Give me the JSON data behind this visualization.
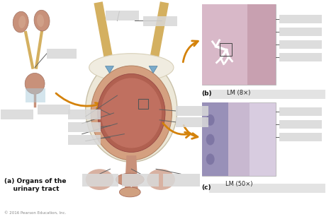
{
  "bg_color": "#ffffff",
  "fig_width": 4.74,
  "fig_height": 3.1,
  "copyright": "© 2016 Pearson Education, Inc.",
  "label_a": "(a) Organs of the\n    urinary tract",
  "label_b": "(b)",
  "label_c": "(c)",
  "lm_8x": "LM (8×)",
  "lm_50x": "LM (50×)",
  "arrow_color": "#d4820a",
  "line_color": "#606060",
  "kidney_color": "#c8917a",
  "ureter_color": "#d4b060",
  "bladder_outer": "#e8ddc8",
  "bladder_wall": "#d4a080",
  "bladder_inner": "#b06050",
  "bladder_mucosa": "#c07060",
  "sphincter_color": "#c0806a",
  "blue_tri": "#7aaaca",
  "micro_b_bg": "#e0ccd8",
  "micro_c_bg": "#d8cce0",
  "gray_label": "#d8d8d8"
}
